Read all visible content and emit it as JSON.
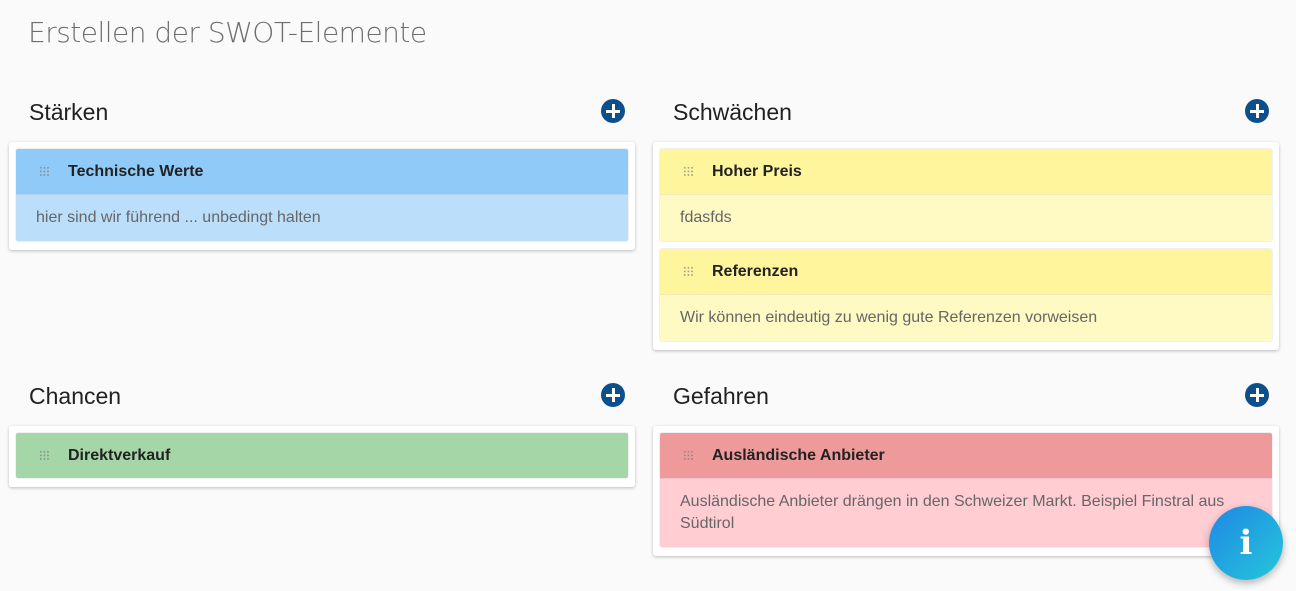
{
  "page": {
    "title": "Erstellen der SWOT-Elemente"
  },
  "icons": {
    "add": "plus-circle-icon",
    "drag": "drag-handle-icon",
    "info": "info-icon"
  },
  "colors": {
    "blue_head": "#90caf9",
    "blue_body": "#bbdefb",
    "yellow_head": "#fff59d",
    "yellow_body": "#fff9c4",
    "green_head": "#a5d6a7",
    "red_head": "#ef9a9a",
    "red_body": "#ffcdd2",
    "add_button": "#0d4f8b"
  },
  "strengths": {
    "title": "Stärken",
    "items": [
      {
        "title": "Technische Werte",
        "description": "hier sind wir führend ... unbedingt halten"
      }
    ]
  },
  "weaknesses": {
    "title": "Schwächen",
    "items": [
      {
        "title": "Hoher Preis",
        "description": "fdasfds"
      },
      {
        "title": "Referenzen",
        "description": "Wir können eindeutig zu wenig gute Referenzen vorweisen"
      }
    ]
  },
  "opportunities": {
    "title": "Chancen",
    "items": [
      {
        "title": "Direktverkauf",
        "description": ""
      }
    ]
  },
  "threats": {
    "title": "Gefahren",
    "items": [
      {
        "title": "Ausländische Anbieter",
        "description": "Ausländische Anbieter drängen in den Schweizer Markt. Beispiel Finstral aus Südtirol"
      }
    ]
  },
  "info_button": {
    "glyph": "i"
  }
}
